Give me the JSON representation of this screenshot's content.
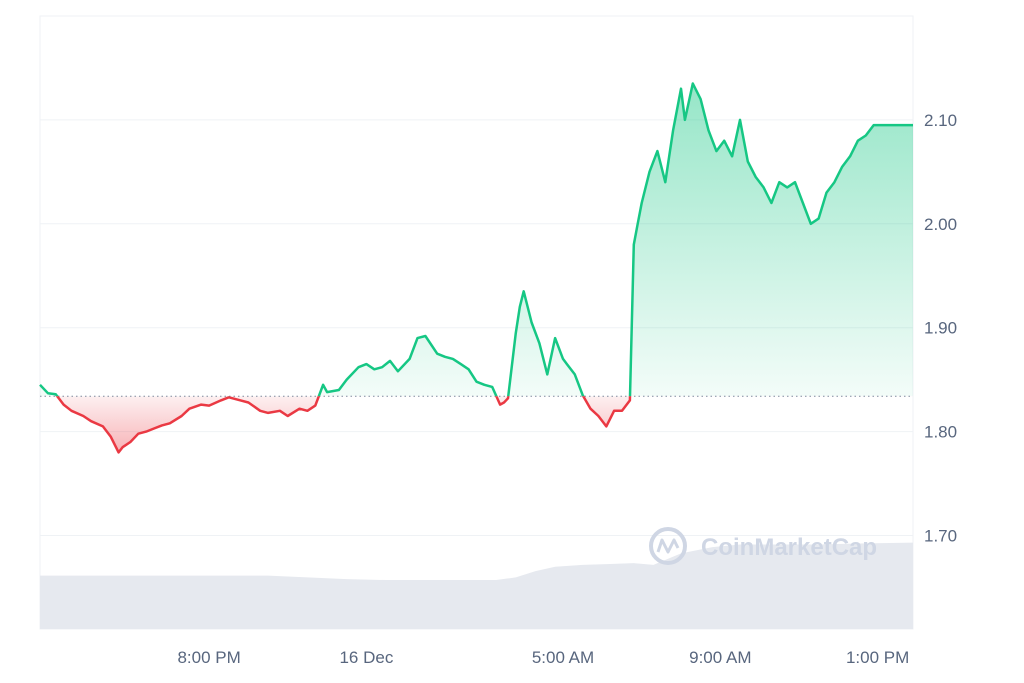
{
  "chart_data": {
    "type": "area",
    "watermark": "CoinMarketCap",
    "baseline": 1.834,
    "ylim": [
      1.61,
      2.2
    ],
    "y_ticks": [
      "1.70",
      "1.80",
      "1.90",
      "2.00",
      "2.10"
    ],
    "y_tick_values": [
      1.7,
      1.8,
      1.9,
      2.0,
      2.1
    ],
    "x_ticks": [
      "8:00 PM",
      "16 Dec",
      "5:00 AM",
      "9:00 AM",
      "1:00 PM"
    ],
    "x_tick_values": [
      20,
      24,
      29,
      33,
      37
    ],
    "xlim": [
      15.7,
      37.9
    ],
    "grid": true,
    "colors": {
      "up": "#16c784",
      "down": "#ea3943",
      "volume": "#e6e9ef",
      "grid": "#eff2f5"
    },
    "series": [
      {
        "x": [
          15.7,
          15.9,
          16.1,
          16.3,
          16.5,
          16.8,
          17.0,
          17.3,
          17.5,
          17.7,
          17.8,
          18.0,
          18.2,
          18.4,
          18.6,
          18.8,
          19.0,
          19.3,
          19.5,
          19.8,
          20.0,
          20.3,
          20.5,
          20.8,
          21.0,
          21.3,
          21.5,
          21.8,
          22.0,
          22.3,
          22.5,
          22.7,
          22.9,
          23.0,
          23.3,
          23.5,
          23.8,
          24.0,
          24.2,
          24.4,
          24.6,
          24.8,
          25.1,
          25.3,
          25.5,
          25.8,
          26.0,
          26.2,
          26.4,
          26.6,
          26.8,
          27.0,
          27.2,
          27.4,
          27.5,
          27.6,
          27.8,
          27.9,
          28.0,
          28.2,
          28.4,
          28.6,
          28.8,
          29.0,
          29.1,
          29.3,
          29.5,
          29.7,
          29.9,
          30.1,
          30.3,
          30.5,
          30.7,
          30.8,
          30.9,
          31.0,
          31.2,
          31.4,
          31.6,
          31.8,
          32.0,
          32.1,
          32.3,
          32.5,
          32.7,
          32.9,
          33.1,
          33.3,
          33.5,
          33.7,
          33.9,
          34.1,
          34.3,
          34.5,
          34.7,
          34.9,
          35.1,
          35.3,
          35.5,
          35.7,
          35.9,
          36.1,
          36.3,
          36.5,
          36.7,
          36.9,
          37.1,
          37.3,
          37.5,
          37.7,
          37.9
        ],
        "values": [
          1.845,
          1.837,
          1.836,
          1.826,
          1.82,
          1.815,
          1.81,
          1.805,
          1.795,
          1.78,
          1.785,
          1.79,
          1.798,
          1.8,
          1.803,
          1.806,
          1.808,
          1.815,
          1.822,
          1.826,
          1.825,
          1.83,
          1.833,
          1.83,
          1.828,
          1.82,
          1.818,
          1.82,
          1.815,
          1.822,
          1.82,
          1.825,
          1.845,
          1.838,
          1.84,
          1.85,
          1.862,
          1.865,
          1.86,
          1.862,
          1.868,
          1.858,
          1.87,
          1.89,
          1.892,
          1.875,
          1.872,
          1.87,
          1.865,
          1.86,
          1.848,
          1.845,
          1.843,
          1.826,
          1.828,
          1.832,
          1.895,
          1.92,
          1.935,
          1.905,
          1.885,
          1.855,
          1.89,
          1.87,
          1.865,
          1.855,
          1.835,
          1.822,
          1.815,
          1.805,
          1.82,
          1.82,
          1.83,
          1.98,
          2.0,
          2.02,
          2.05,
          2.07,
          2.04,
          2.09,
          2.13,
          2.1,
          2.135,
          2.12,
          2.09,
          2.07,
          2.08,
          2.065,
          2.1,
          2.06,
          2.045,
          2.035,
          2.02,
          2.04,
          2.035,
          2.04,
          2.02,
          2.0,
          2.005,
          2.03,
          2.04,
          2.055,
          2.065,
          2.08,
          2.085,
          2.095,
          2.095,
          2.095,
          2.095,
          2.095,
          2.095
        ]
      }
    ],
    "volume": {
      "x": [
        15.7,
        17.0,
        18.5,
        20.0,
        21.5,
        22.5,
        23.5,
        24.5,
        25.5,
        26.5,
        27.3,
        27.8,
        28.3,
        28.8,
        29.5,
        30.2,
        30.8,
        31.3,
        32.0,
        32.8,
        33.5,
        34.5,
        35.5,
        36.5,
        37.9
      ],
      "values": [
        0.6,
        0.6,
        0.6,
        0.6,
        0.6,
        0.58,
        0.56,
        0.55,
        0.55,
        0.55,
        0.55,
        0.58,
        0.65,
        0.7,
        0.72,
        0.73,
        0.74,
        0.72,
        0.85,
        0.92,
        0.95,
        0.95,
        0.95,
        0.96,
        0.97
      ]
    }
  }
}
